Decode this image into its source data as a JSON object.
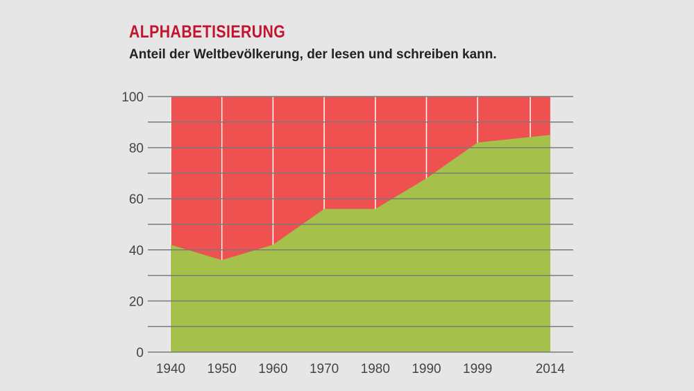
{
  "title": "ALPHABETISIERUNG",
  "subtitle": "Anteil der Weltbevölkerung, der lesen und schreiben kann.",
  "colors": {
    "literate": "#a6c14b",
    "illiterate": "#ef5050",
    "title": "#c2132f",
    "grid": "#7a7a7a"
  },
  "chart_data": {
    "type": "area",
    "title": "ALPHABETISIERUNG",
    "subtitle": "Anteil der Weltbevölkerung, der lesen und schreiben kann.",
    "categories": [
      "1940",
      "1950",
      "1960",
      "1970",
      "1980",
      "1990",
      "1999",
      "2014"
    ],
    "values": [
      42,
      36,
      42,
      56,
      56,
      68,
      82,
      85
    ],
    "ylim": [
      0,
      100
    ],
    "yticks": [
      0,
      20,
      40,
      60,
      80,
      100
    ],
    "grid": true,
    "xlabel": "",
    "ylabel": ""
  }
}
